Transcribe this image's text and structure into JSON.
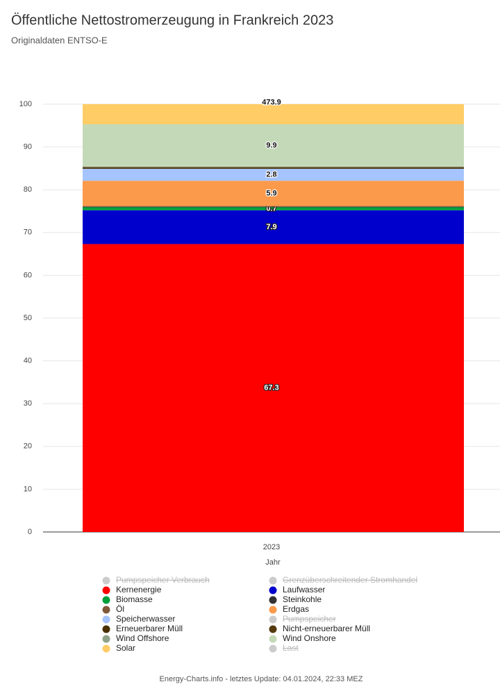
{
  "chart_data": {
    "type": "stacked-bar",
    "title": "Öffentliche Nettostromerzeugung in Frankreich 2023",
    "subtitle": "Originaldaten ENTSO-E",
    "x_label": "Jahr",
    "categories": [
      "2023"
    ],
    "ylim": [
      0,
      100
    ],
    "yticks": [
      0,
      10,
      20,
      30,
      40,
      50,
      60,
      70,
      80,
      90,
      100
    ],
    "grid": true,
    "series": [
      {
        "name": "Pumpspeicher Verbrauch",
        "color": "#cccccc",
        "values": [
          null
        ],
        "hidden": true
      },
      {
        "name": "Grenzüberschreitender Stromhandel",
        "color": "#cccccc",
        "values": [
          null
        ],
        "hidden": true
      },
      {
        "name": "Kernenergie",
        "color": "#ff0000",
        "values": [
          67.3
        ],
        "show_label": true,
        "label_color": "#ffffff"
      },
      {
        "name": "Laufwasser",
        "color": "#0000cc",
        "values": [
          7.9
        ],
        "show_label": true,
        "label_color": "#ffffff"
      },
      {
        "name": "Biomasse",
        "color": "#00a03c",
        "values": [
          0.7
        ],
        "show_label": true,
        "label_color": "#ffffff"
      },
      {
        "name": "Steinkohle",
        "color": "#333333",
        "values": [
          0.1
        ]
      },
      {
        "name": "Öl",
        "color": "#7f5a3a",
        "values": [
          0.2
        ]
      },
      {
        "name": "Erdgas",
        "color": "#fb9a4b",
        "values": [
          5.9
        ],
        "show_label": true,
        "label_color": "#111111"
      },
      {
        "name": "Speicherwasser",
        "color": "#a6c4ff",
        "values": [
          2.8
        ],
        "show_label": true,
        "label_color": "#111111"
      },
      {
        "name": "Pumpspeicher",
        "color": "#cccccc",
        "values": [
          null
        ],
        "hidden": true
      },
      {
        "name": "Erneuerbarer Müll",
        "color": "#4a3000",
        "values": [
          0.2
        ]
      },
      {
        "name": "Nicht-erneuerbarer Müll",
        "color": "#553a10",
        "values": [
          0.2
        ]
      },
      {
        "name": "Wind Offshore",
        "color": "#8fa38a",
        "values": [
          0.1
        ]
      },
      {
        "name": "Wind Onshore",
        "color": "#c4d9b8",
        "values": [
          9.9
        ],
        "show_label": true,
        "label_color": "#111111"
      },
      {
        "name": "Solar",
        "color": "#ffcc66",
        "values": [
          4.7
        ]
      },
      {
        "name": "Last",
        "color": "#cccccc",
        "values": [
          null
        ],
        "hidden": true
      }
    ],
    "annotations": [
      {
        "text": "473.9",
        "series": 14
      }
    ],
    "footer": "Energy-Charts.info - letztes Update: 04.01.2024, 22:33 MEZ"
  }
}
